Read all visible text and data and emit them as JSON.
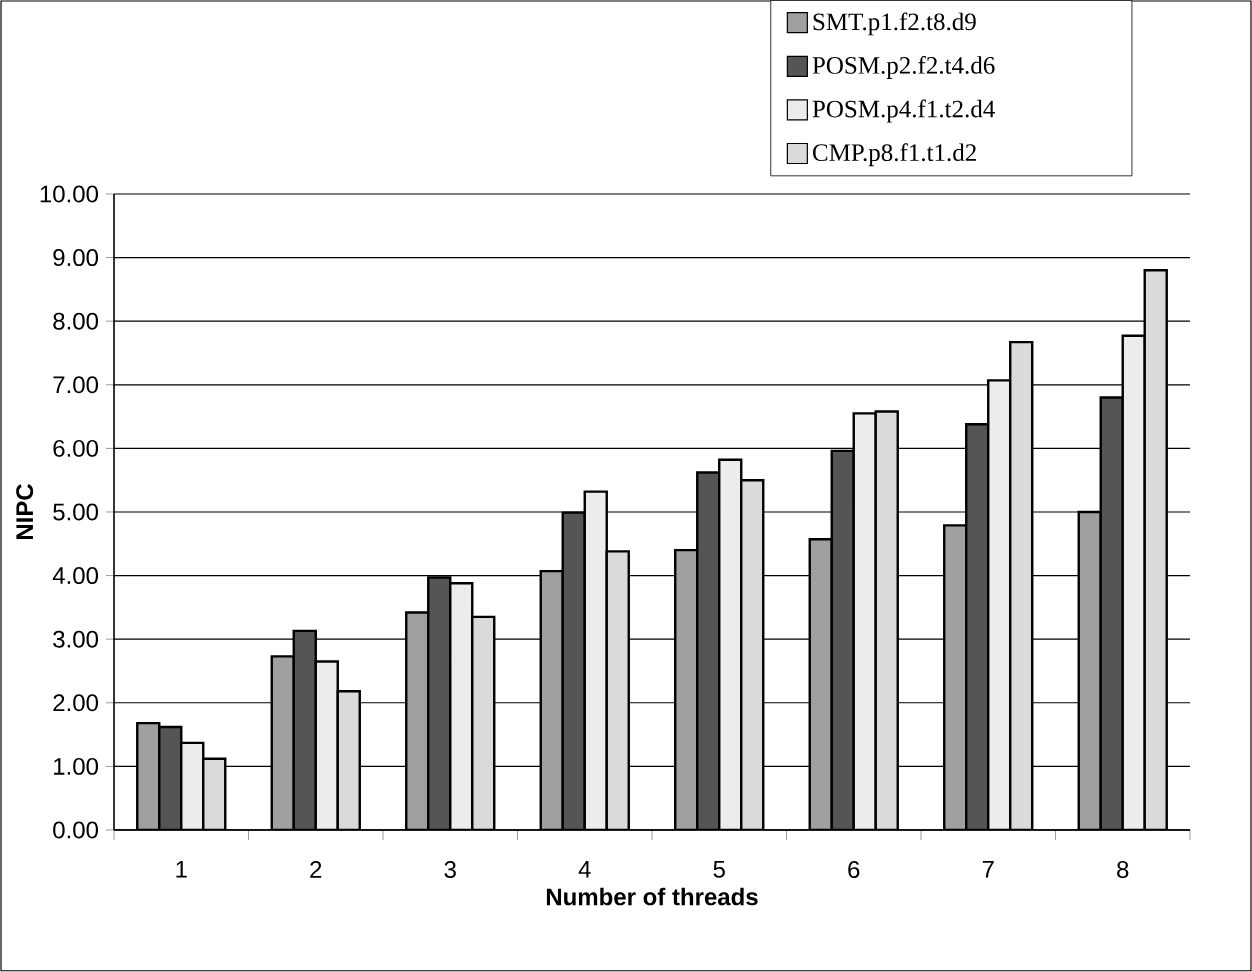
{
  "chart_data": {
    "type": "bar",
    "xlabel": "Number of threads",
    "ylabel": "NIPC",
    "categories": [
      "1",
      "2",
      "3",
      "4",
      "5",
      "6",
      "7",
      "8"
    ],
    "series": [
      {
        "name": "SMT.p1.f2.t8.d9",
        "color": "#a0a0a0",
        "values": [
          1.68,
          2.73,
          3.42,
          4.07,
          4.4,
          4.57,
          4.79,
          5.0
        ]
      },
      {
        "name": "POSM.p2.f2.t4.d6",
        "color": "#555555",
        "values": [
          1.62,
          3.13,
          3.97,
          4.99,
          5.62,
          5.96,
          6.38,
          6.8
        ]
      },
      {
        "name": "POSM.p4.f1.t2.d4",
        "color": "#ececec",
        "values": [
          1.37,
          2.65,
          3.88,
          5.32,
          5.82,
          6.55,
          7.07,
          7.77
        ]
      },
      {
        "name": "CMP.p8.f1.t1.d2",
        "color": "#dadada",
        "values": [
          1.12,
          2.18,
          3.35,
          4.38,
          5.5,
          6.58,
          7.67,
          8.8
        ]
      }
    ],
    "ylim": [
      0,
      10
    ],
    "yticks": [
      {
        "value": 0,
        "label": "0.00"
      },
      {
        "value": 1,
        "label": "1.00"
      },
      {
        "value": 2,
        "label": "2.00"
      },
      {
        "value": 3,
        "label": "3.00"
      },
      {
        "value": 4,
        "label": "4.00"
      },
      {
        "value": 5,
        "label": "5.00"
      },
      {
        "value": 6,
        "label": "6.00"
      },
      {
        "value": 7,
        "label": "7.00"
      },
      {
        "value": 8,
        "label": "8.00"
      },
      {
        "value": 9,
        "label": "9.00"
      },
      {
        "value": 10,
        "label": "10.00"
      }
    ],
    "grid": "y",
    "legend": "top right"
  }
}
